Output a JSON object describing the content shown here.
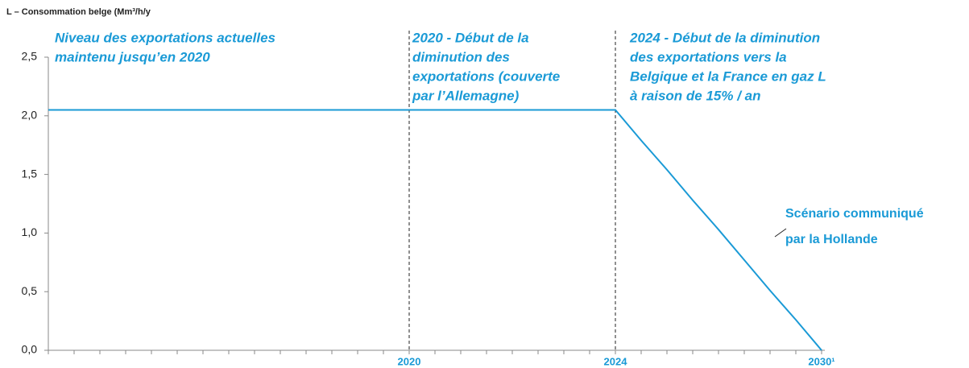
{
  "chart_data": {
    "type": "line",
    "title": "L – Consommation belge (Mm³/h/y",
    "categories": [
      null,
      null,
      null,
      null,
      null,
      null,
      null,
      null,
      null,
      null,
      null,
      null,
      null,
      null,
      "2020",
      null,
      null,
      null,
      null,
      null,
      null,
      null,
      "2024",
      null,
      null,
      null,
      null,
      null,
      null,
      null,
      "2030¹"
    ],
    "series": [
      {
        "name": "Scénario communiqué par la Hollande",
        "color": "#1a9ad6",
        "values": [
          2.05,
          2.05,
          2.05,
          2.05,
          2.05,
          2.05,
          2.05,
          2.05,
          2.05,
          2.05,
          2.05,
          2.05,
          2.05,
          2.05,
          2.05,
          2.05,
          2.05,
          2.05,
          2.05,
          2.05,
          2.05,
          2.05,
          2.05,
          1.79,
          1.54,
          1.28,
          1.03,
          0.77,
          0.51,
          0.26,
          0
        ]
      }
    ],
    "ylim": [
      0,
      2.5
    ],
    "yticks": [
      {
        "value": 0,
        "label": "0,0"
      },
      {
        "value": 0.5,
        "label": "0,5"
      },
      {
        "value": 1,
        "label": "1,0"
      },
      {
        "value": 1.5,
        "label": "1,5"
      },
      {
        "value": 2,
        "label": "2,0"
      },
      {
        "value": 2.5,
        "label": "2,5"
      }
    ],
    "annotations": [
      [
        "Niveau des exportations actuelles",
        "maintenu jusqu’en 2020"
      ],
      [
        "2020 - Début de la",
        "diminution des",
        "exportations (couverte",
        "par l’Allemagne)"
      ],
      [
        "2024 - Début de la diminution",
        "des exportations vers la",
        "Belgique et la France en gaz L",
        "à raison de 15% / an"
      ]
    ],
    "series_label": [
      "Scénario communiqué",
      "par la Hollande"
    ]
  }
}
